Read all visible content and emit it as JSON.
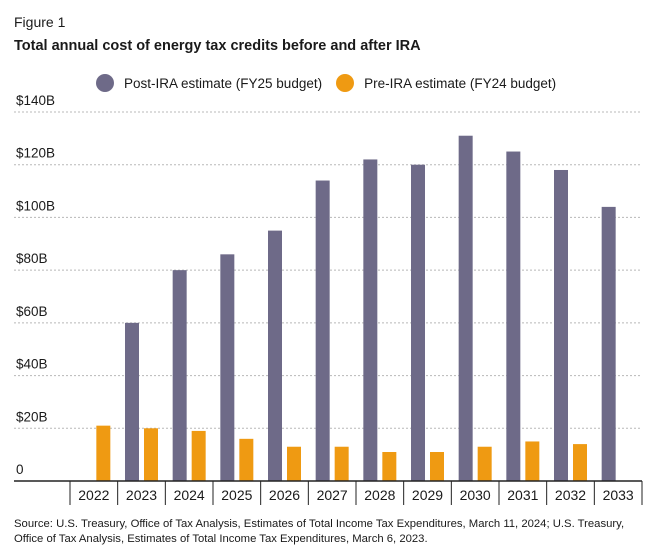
{
  "figure_label": "Figure 1",
  "title": "Total annual cost of energy tax credits before and after IRA",
  "source": "Source: U.S. Treasury, Office of Tax Analysis, Estimates of Total Income Tax Expenditures, March 11, 2024; U.S. Treasury, Office of Tax Analysis, Estimates of Total Income Tax Expenditures, March 6, 2023.",
  "colors": {
    "post": "#6e6a88",
    "pre": "#ef9a12",
    "grid": "#b8b8b8",
    "axis": "#222222"
  },
  "chart_data": {
    "type": "bar",
    "title": "Total annual cost of energy tax credits before and after IRA",
    "xlabel": "",
    "ylabel": "",
    "ylim": [
      0,
      140
    ],
    "y_ticks": [
      {
        "value": 0,
        "label": "0"
      },
      {
        "value": 20,
        "label": "$20B"
      },
      {
        "value": 40,
        "label": "$40B"
      },
      {
        "value": 60,
        "label": "$60B"
      },
      {
        "value": 80,
        "label": "$80B"
      },
      {
        "value": 100,
        "label": "$100B"
      },
      {
        "value": 120,
        "label": "$120B"
      },
      {
        "value": 140,
        "label": "$140B"
      }
    ],
    "grid": true,
    "legend_position": "top",
    "categories": [
      "2022",
      "2023",
      "2024",
      "2025",
      "2026",
      "2027",
      "2028",
      "2029",
      "2030",
      "2031",
      "2032",
      "2033"
    ],
    "series": [
      {
        "name": "Post-IRA estimate (FY25 budget)",
        "color": "#6e6a88",
        "values": [
          null,
          60,
          80,
          86,
          95,
          114,
          122,
          120,
          131,
          125,
          118,
          104
        ]
      },
      {
        "name": "Pre-IRA estimate (FY24 budget)",
        "color": "#ef9a12",
        "values": [
          21,
          20,
          19,
          16,
          13,
          13,
          11,
          11,
          13,
          15,
          14,
          null
        ]
      }
    ]
  }
}
